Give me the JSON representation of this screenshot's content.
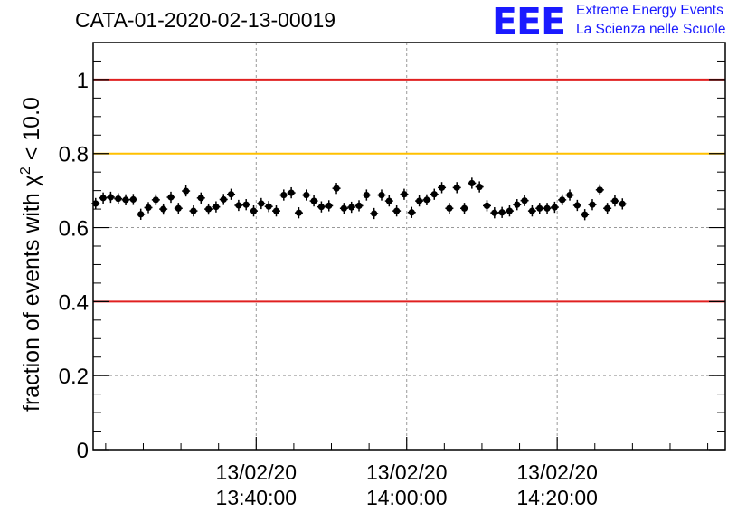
{
  "title": "CATA-01-2020-02-13-00019",
  "logo": {
    "mark": "EEE",
    "line1": "Extreme Energy Events",
    "line2": "La Scienza nelle Scuole"
  },
  "chart_data": {
    "type": "scatter",
    "title": "CATA-01-2020-02-13-00019",
    "xlabel": "",
    "ylabel_main": "fraction of events with χ",
    "ylabel_sup": "2",
    "ylabel_tail": " < 10.0",
    "xlim": [
      "13:19:00",
      "14:43:00"
    ],
    "ylim": [
      0,
      1.1
    ],
    "yticks": [
      "0",
      "0.2",
      "0.4",
      "0.6",
      "0.8",
      "1"
    ],
    "ytick_values": [
      0,
      0.2,
      0.4,
      0.6,
      0.8,
      1.0
    ],
    "xticks": [
      {
        "date": "13/02/20",
        "time": "13:40:00",
        "t": 1300
      },
      {
        "date": "13/02/20",
        "time": "14:00:00",
        "t": 2500
      },
      {
        "date": "13/02/20",
        "time": "14:20:00",
        "t": 3700
      }
    ],
    "x_time_unit": "seconds after 13:18:20",
    "grid": true,
    "reference_lines": [
      {
        "y": 1.0,
        "color": "#e02020"
      },
      {
        "y": 0.8,
        "color": "#ffc000"
      },
      {
        "y": 0.4,
        "color": "#e02020"
      }
    ],
    "points": [
      0.665,
      0.68,
      0.682,
      0.678,
      0.675,
      0.676,
      0.636,
      0.654,
      0.675,
      0.65,
      0.682,
      0.652,
      0.699,
      0.645,
      0.68,
      0.65,
      0.656,
      0.676,
      0.69,
      0.66,
      0.662,
      0.645,
      0.665,
      0.657,
      0.645,
      0.688,
      0.694,
      0.64,
      0.688,
      0.672,
      0.656,
      0.659,
      0.706,
      0.652,
      0.655,
      0.659,
      0.688,
      0.638,
      0.688,
      0.672,
      0.645,
      0.69,
      0.641,
      0.672,
      0.675,
      0.69,
      0.708,
      0.652,
      0.708,
      0.652,
      0.72,
      0.71,
      0.659,
      0.64,
      0.641,
      0.645,
      0.662,
      0.673,
      0.645,
      0.652,
      0.652,
      0.655,
      0.675,
      0.688,
      0.66,
      0.635,
      0.662,
      0.702,
      0.652,
      0.672,
      0.664
    ],
    "point_x_start": 20,
    "point_x_step": 60,
    "yerr": 0.015
  }
}
